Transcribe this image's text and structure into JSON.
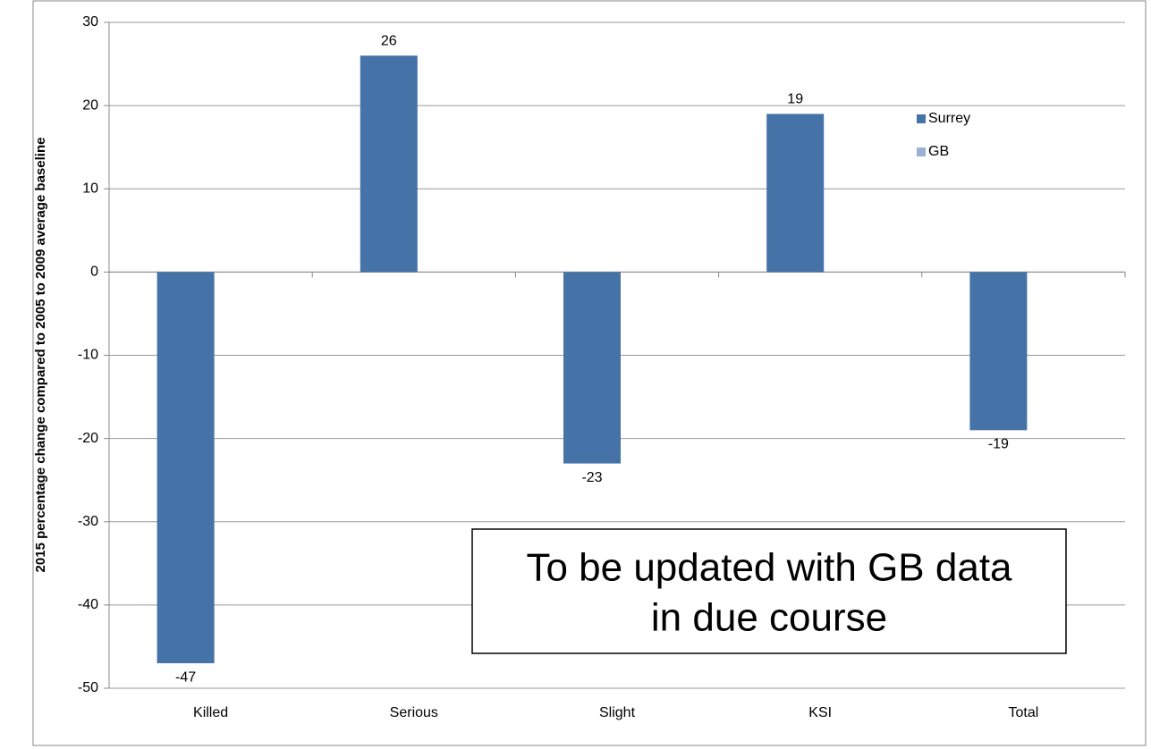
{
  "chart_data": {
    "type": "bar",
    "y_label": "2015 percentage change compared to 2005 to 2009 average baseline",
    "categories": [
      "Killed",
      "Serious",
      "Slight",
      "KSI",
      "Total"
    ],
    "series": [
      {
        "name": "Surrey",
        "color": "#4572a7",
        "values": [
          -47,
          26,
          -23,
          19,
          -19
        ]
      },
      {
        "name": "GB",
        "color": "#9bb1d4",
        "values": [
          null,
          null,
          null,
          null,
          null
        ]
      }
    ],
    "ylim": [
      -50,
      30
    ],
    "yticks": [
      -50,
      -40,
      -30,
      -20,
      -10,
      0,
      10,
      20,
      30
    ],
    "grid": true,
    "legend": "right",
    "annotation": [
      "To be updated with GB data",
      "in due course"
    ]
  }
}
